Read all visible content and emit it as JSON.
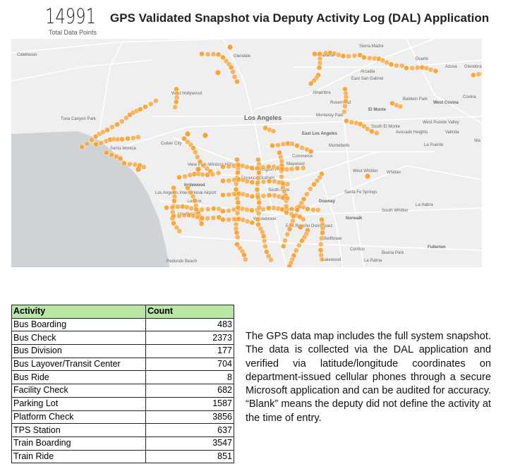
{
  "header": {
    "total": "14991",
    "total_label": "Total Data Points",
    "title": "GPS Validated Snapshot via Deputy Activity Log (DAL) Application"
  },
  "map": {
    "dot_color": "#f7a233",
    "ocean_color": "#d0d3d5",
    "land_color": "#efefef",
    "labels": [
      "Calabasas",
      "Glendale",
      "Pasadena",
      "Sierra Madre",
      "Duarte",
      "Azusa",
      "Glendora",
      "Arcadia",
      "East San Gabriel",
      "Alhambra",
      "Rosemead",
      "El Monte",
      "Baldwin Park",
      "West Covina",
      "Covina",
      "West Hollywood",
      "Tuna Canyon Park",
      "Los Angeles",
      "Monterey Park",
      "South El Monte",
      "West Puente Valley",
      "Avocado Heights",
      "Valinda",
      "East Los Angeles",
      "Montebello",
      "La Puente",
      "Culver City",
      "Santa Monica",
      "Commerce",
      "Maywood",
      "View Park-Windsor Hills",
      "Huntington Park",
      "Florence-Graham",
      "West Whittier",
      "Whittier",
      "Inglewood",
      "South Gate",
      "Santa Fe Springs",
      "Los Angeles International Airport",
      "Lennox",
      "Downey",
      "La Habra",
      "Lynwood",
      "South Whittier",
      "Hawthorne",
      "Willowbrook",
      "Norwalk",
      "East Rancho Dominguez",
      "Bellflower",
      "Fullerton",
      "Cerritos",
      "Buena Park",
      "Lakewood",
      "La Palma",
      "Redondo Beach",
      "Wa"
    ]
  },
  "table": {
    "headers": [
      "Activity",
      "Count"
    ],
    "rows": [
      [
        "Bus Boarding",
        "483"
      ],
      [
        "Bus Check",
        "2373"
      ],
      [
        "Bus Division",
        "177"
      ],
      [
        "Bus Layover/Transit Center",
        "704"
      ],
      [
        "Bus Ride",
        "8"
      ],
      [
        "Facility Check",
        "682"
      ],
      [
        "Parking Lot",
        "1587"
      ],
      [
        "Platform Check",
        "3856"
      ],
      [
        "TPS Station",
        "637"
      ],
      [
        "Train Boarding",
        "3547"
      ],
      [
        "Train Ride",
        "851"
      ]
    ]
  },
  "note": "The GPS data map includes the full system snapshot. The data is collected via the DAL application and verified via latitude/longitude coordinates on department-issued cellular phones through a secure Microsoft application and can be audited for accuracy. “Blank” means the deputy did not define the activity at the time of entry."
}
